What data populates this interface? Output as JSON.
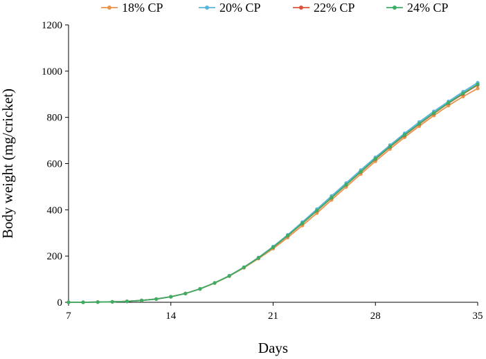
{
  "chart_data": {
    "type": "line",
    "xlabel": "Days",
    "ylabel": "Body weight (mg/cricket)",
    "xlim": [
      7,
      35
    ],
    "ylim": [
      0,
      1200
    ],
    "xticks": [
      7,
      14,
      21,
      28,
      35
    ],
    "yticks": [
      0,
      200,
      400,
      600,
      800,
      1000,
      1200
    ],
    "grid": false,
    "legend_position": "top",
    "x": [
      7,
      8,
      9,
      10,
      11,
      12,
      13,
      14,
      15,
      16,
      17,
      18,
      19,
      20,
      21,
      22,
      23,
      24,
      25,
      26,
      27,
      28,
      29,
      30,
      31,
      32,
      33,
      34,
      35
    ],
    "series": [
      {
        "name": "18% CP",
        "color": "#E8944A",
        "values": [
          0,
          0,
          1,
          2,
          4,
          8,
          14,
          24,
          38,
          58,
          83,
          113,
          149,
          189,
          232,
          280,
          332,
          386,
          443,
          499,
          555,
          610,
          663,
          714,
          762,
          808,
          851,
          890,
          925
        ]
      },
      {
        "name": "20% CP",
        "color": "#5AB4E0",
        "values": [
          0,
          0,
          1,
          2,
          4,
          8,
          14,
          24,
          38,
          58,
          84,
          115,
          152,
          194,
          241,
          292,
          347,
          403,
          460,
          516,
          572,
          627,
          680,
          731,
          780,
          826,
          869,
          911,
          950
        ]
      },
      {
        "name": "22% CP",
        "color": "#D9533A",
        "values": [
          0,
          0,
          1,
          2,
          4,
          8,
          14,
          24,
          38,
          58,
          84,
          114,
          151,
          192,
          238,
          288,
          341,
          396,
          452,
          508,
          564,
          619,
          672,
          722,
          771,
          817,
          861,
          901,
          940
        ]
      },
      {
        "name": "24% CP",
        "color": "#3DAE64",
        "values": [
          0,
          0,
          1,
          2,
          4,
          8,
          14,
          24,
          38,
          58,
          84,
          114,
          151,
          192,
          238,
          289,
          342,
          397,
          453,
          509,
          565,
          621,
          674,
          725,
          773,
          819,
          863,
          904,
          943
        ]
      }
    ]
  }
}
